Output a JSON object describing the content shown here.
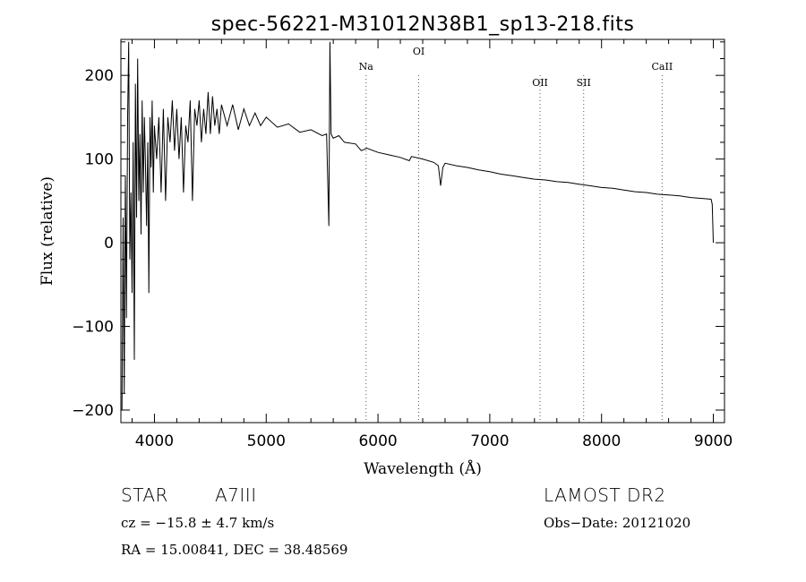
{
  "chart_data": {
    "type": "line",
    "title": "spec-56221-M31012N38B1_sp13-218.fits",
    "xlabel": "Wavelength (Å)",
    "ylabel": "Flux (relative)",
    "xlim": [
      3700,
      9100
    ],
    "ylim": [
      -215,
      243
    ],
    "x_ticks": [
      4000,
      5000,
      6000,
      7000,
      8000,
      9000
    ],
    "x_tick_labels": [
      "4000",
      "5000",
      "6000",
      "7000",
      "8000",
      "9000"
    ],
    "y_ticks": [
      -200,
      -100,
      0,
      100,
      200
    ],
    "y_tick_labels": [
      "−200",
      "−100",
      "0",
      "100",
      "200"
    ],
    "grid": false,
    "spectral_lines": [
      {
        "name": "Na",
        "x": 5893
      },
      {
        "name": "OI",
        "x": 6364
      },
      {
        "name": "OII",
        "x": 7450
      },
      {
        "name": "SII",
        "x": 7840
      },
      {
        "name": "CaII",
        "x": 8542
      }
    ],
    "series": [
      {
        "values": [
          [
            3710,
            -200
          ],
          [
            3720,
            30
          ],
          [
            3730,
            -180
          ],
          [
            3740,
            80
          ],
          [
            3750,
            -90
          ],
          [
            3760,
            150
          ],
          [
            3770,
            240
          ],
          [
            3780,
            -20
          ],
          [
            3790,
            60
          ],
          [
            3800,
            -60
          ],
          [
            3810,
            120
          ],
          [
            3820,
            -140
          ],
          [
            3830,
            190
          ],
          [
            3840,
            30
          ],
          [
            3850,
            220
          ],
          [
            3860,
            50
          ],
          [
            3870,
            130
          ],
          [
            3880,
            10
          ],
          [
            3890,
            170
          ],
          [
            3900,
            60
          ],
          [
            3910,
            150
          ],
          [
            3920,
            90
          ],
          [
            3930,
            20
          ],
          [
            3940,
            120
          ],
          [
            3950,
            -60
          ],
          [
            3960,
            150
          ],
          [
            3970,
            90
          ],
          [
            3980,
            170
          ],
          [
            3990,
            60
          ],
          [
            4000,
            140
          ],
          [
            4020,
            100
          ],
          [
            4040,
            150
          ],
          [
            4060,
            60
          ],
          [
            4080,
            160
          ],
          [
            4100,
            50
          ],
          [
            4120,
            150
          ],
          [
            4140,
            120
          ],
          [
            4160,
            170
          ],
          [
            4180,
            110
          ],
          [
            4200,
            160
          ],
          [
            4220,
            100
          ],
          [
            4240,
            150
          ],
          [
            4260,
            60
          ],
          [
            4280,
            140
          ],
          [
            4300,
            120
          ],
          [
            4320,
            170
          ],
          [
            4340,
            50
          ],
          [
            4360,
            160
          ],
          [
            4380,
            140
          ],
          [
            4400,
            170
          ],
          [
            4420,
            120
          ],
          [
            4440,
            160
          ],
          [
            4460,
            130
          ],
          [
            4480,
            180
          ],
          [
            4500,
            130
          ],
          [
            4520,
            175
          ],
          [
            4540,
            140
          ],
          [
            4560,
            160
          ],
          [
            4580,
            130
          ],
          [
            4600,
            165
          ],
          [
            4650,
            140
          ],
          [
            4700,
            165
          ],
          [
            4750,
            135
          ],
          [
            4800,
            160
          ],
          [
            4850,
            140
          ],
          [
            4900,
            155
          ],
          [
            4950,
            140
          ],
          [
            5000,
            150
          ],
          [
            5100,
            138
          ],
          [
            5200,
            142
          ],
          [
            5300,
            132
          ],
          [
            5400,
            135
          ],
          [
            5500,
            128
          ],
          [
            5540,
            130
          ],
          [
            5560,
            20
          ],
          [
            5570,
            240
          ],
          [
            5580,
            130
          ],
          [
            5600,
            125
          ],
          [
            5650,
            128
          ],
          [
            5700,
            120
          ],
          [
            5800,
            118
          ],
          [
            5850,
            110
          ],
          [
            5900,
            113
          ],
          [
            6000,
            108
          ],
          [
            6100,
            105
          ],
          [
            6200,
            102
          ],
          [
            6280,
            98
          ],
          [
            6300,
            103
          ],
          [
            6400,
            100
          ],
          [
            6500,
            96
          ],
          [
            6540,
            92
          ],
          [
            6560,
            68
          ],
          [
            6580,
            90
          ],
          [
            6600,
            95
          ],
          [
            6700,
            92
          ],
          [
            6800,
            90
          ],
          [
            6900,
            87
          ],
          [
            7000,
            85
          ],
          [
            7100,
            82
          ],
          [
            7200,
            80
          ],
          [
            7300,
            78
          ],
          [
            7400,
            76
          ],
          [
            7500,
            75
          ],
          [
            7600,
            73
          ],
          [
            7700,
            72
          ],
          [
            7800,
            70
          ],
          [
            7900,
            68
          ],
          [
            8000,
            66
          ],
          [
            8100,
            65
          ],
          [
            8200,
            63
          ],
          [
            8300,
            61
          ],
          [
            8400,
            60
          ],
          [
            8500,
            58
          ],
          [
            8600,
            57
          ],
          [
            8700,
            56
          ],
          [
            8800,
            54
          ],
          [
            8900,
            53
          ],
          [
            8980,
            52
          ],
          [
            8990,
            46
          ],
          [
            9000,
            0
          ]
        ]
      }
    ]
  },
  "footer": {
    "object_type": "STAR",
    "spectral_class": "A7III",
    "survey": "LAMOST DR2",
    "redshift": "cz = −15.8 ± 4.7 km/s",
    "obs_date": "Obs−Date: 20121020",
    "coords": "RA =  15.00841, DEC =  38.48569"
  }
}
